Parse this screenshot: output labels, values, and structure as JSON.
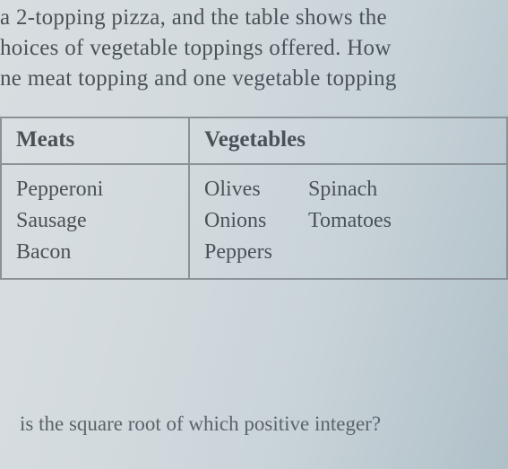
{
  "text": {
    "line1": "a 2-topping pizza, and the table shows the",
    "line2": "hoices of vegetable toppings offered. How",
    "line3": "ne meat topping and one vegetable topping",
    "bottom": "is the square root of which positive integer?"
  },
  "table": {
    "columns": [
      "Meats",
      "Vegetables"
    ],
    "meats": [
      "Pepperoni",
      "Sausage",
      "Bacon"
    ],
    "vegetables_col1": [
      "Olives",
      "Onions",
      "Peppers"
    ],
    "vegetables_col2": [
      "Spinach",
      "Tomatoes"
    ],
    "border_color": "#8a9298",
    "header_fontsize": 25,
    "cell_fontsize": 24,
    "col_meats_width": 210
  },
  "style": {
    "background_gradient_start": "#d8dde0",
    "background_gradient_end": "#b0c0c8",
    "text_color": "#4a5258",
    "font_family": "Georgia, Times New Roman, serif",
    "body_fontsize": 25
  }
}
